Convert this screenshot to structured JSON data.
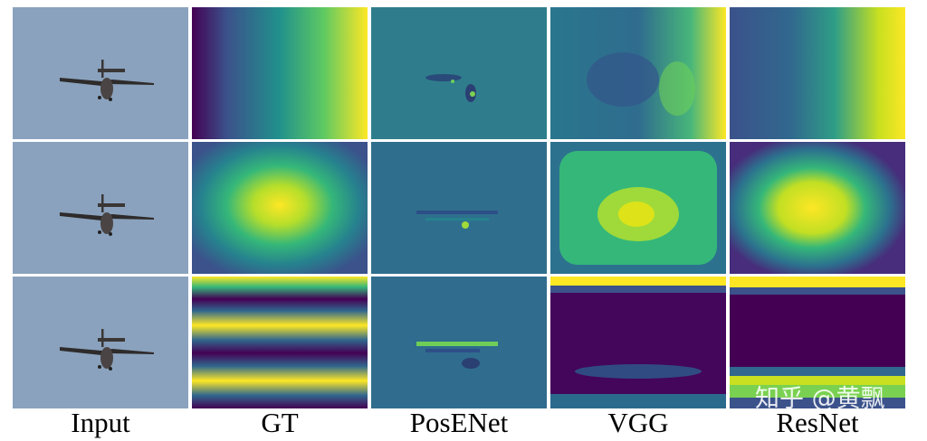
{
  "columns": [
    "Input",
    "GT",
    "PosENet",
    "VGG",
    "ResNet"
  ],
  "rows": 3,
  "colors": {
    "sky": "#8aa2bd",
    "viridis_dark": "#440154",
    "viridis_teal": "#21918c",
    "viridis_yellow": "#fde725"
  },
  "watermark": "知乎 @黄飘"
}
